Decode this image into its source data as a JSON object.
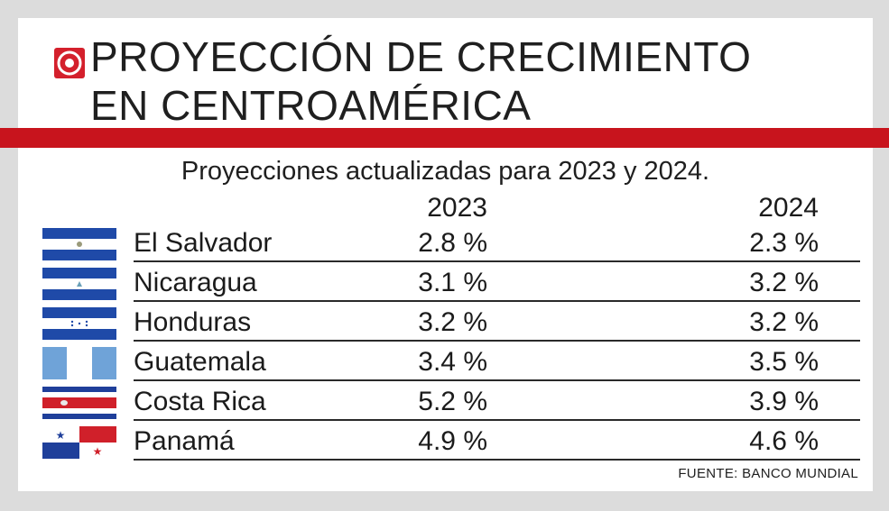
{
  "header": {
    "title_line1": "PROYECCIÓN DE CRECIMIENTO",
    "title_line2": "EN CENTROAMÉRICA",
    "logo_icon": "target-icon",
    "accent_color": "#c8141d"
  },
  "subtitle": "Proyecciones actualizadas para 2023 y 2024.",
  "columns": [
    "2023",
    "2024"
  ],
  "rows": [
    {
      "country": "El Salvador",
      "flag_icon": "el-salvador-flag-icon",
      "v2023": "2.8 %",
      "v2024": "2.3 %"
    },
    {
      "country": "Nicaragua",
      "flag_icon": "nicaragua-flag-icon",
      "v2023": "3.1 %",
      "v2024": "3.2 %"
    },
    {
      "country": "Honduras",
      "flag_icon": "honduras-flag-icon",
      "v2023": "3.2 %",
      "v2024": "3.2 %"
    },
    {
      "country": "Guatemala",
      "flag_icon": "guatemala-flag-icon",
      "v2023": "3.4 %",
      "v2024": "3.5 %"
    },
    {
      "country": "Costa Rica",
      "flag_icon": "costa-rica-flag-icon",
      "v2023": "5.2 %",
      "v2024": "3.9 %"
    },
    {
      "country": "Panamá",
      "flag_icon": "panama-flag-icon",
      "v2023": "4.9 %",
      "v2024": "4.6 %"
    }
  ],
  "source": "FUENTE: BANCO MUNDIAL",
  "chart_data": {
    "type": "table",
    "title": "PROYECCIÓN DE CRECIMIENTO EN CENTROAMÉRICA",
    "subtitle": "Proyecciones actualizadas para 2023 y 2024.",
    "categories": [
      "El Salvador",
      "Nicaragua",
      "Honduras",
      "Guatemala",
      "Costa Rica",
      "Panamá"
    ],
    "series": [
      {
        "name": "2023",
        "values": [
          2.8,
          3.1,
          3.2,
          3.4,
          5.2,
          4.9
        ]
      },
      {
        "name": "2024",
        "values": [
          2.3,
          3.2,
          3.2,
          3.5,
          3.9,
          4.6
        ]
      }
    ],
    "unit": "%",
    "source": "FUENTE: BANCO MUNDIAL"
  }
}
